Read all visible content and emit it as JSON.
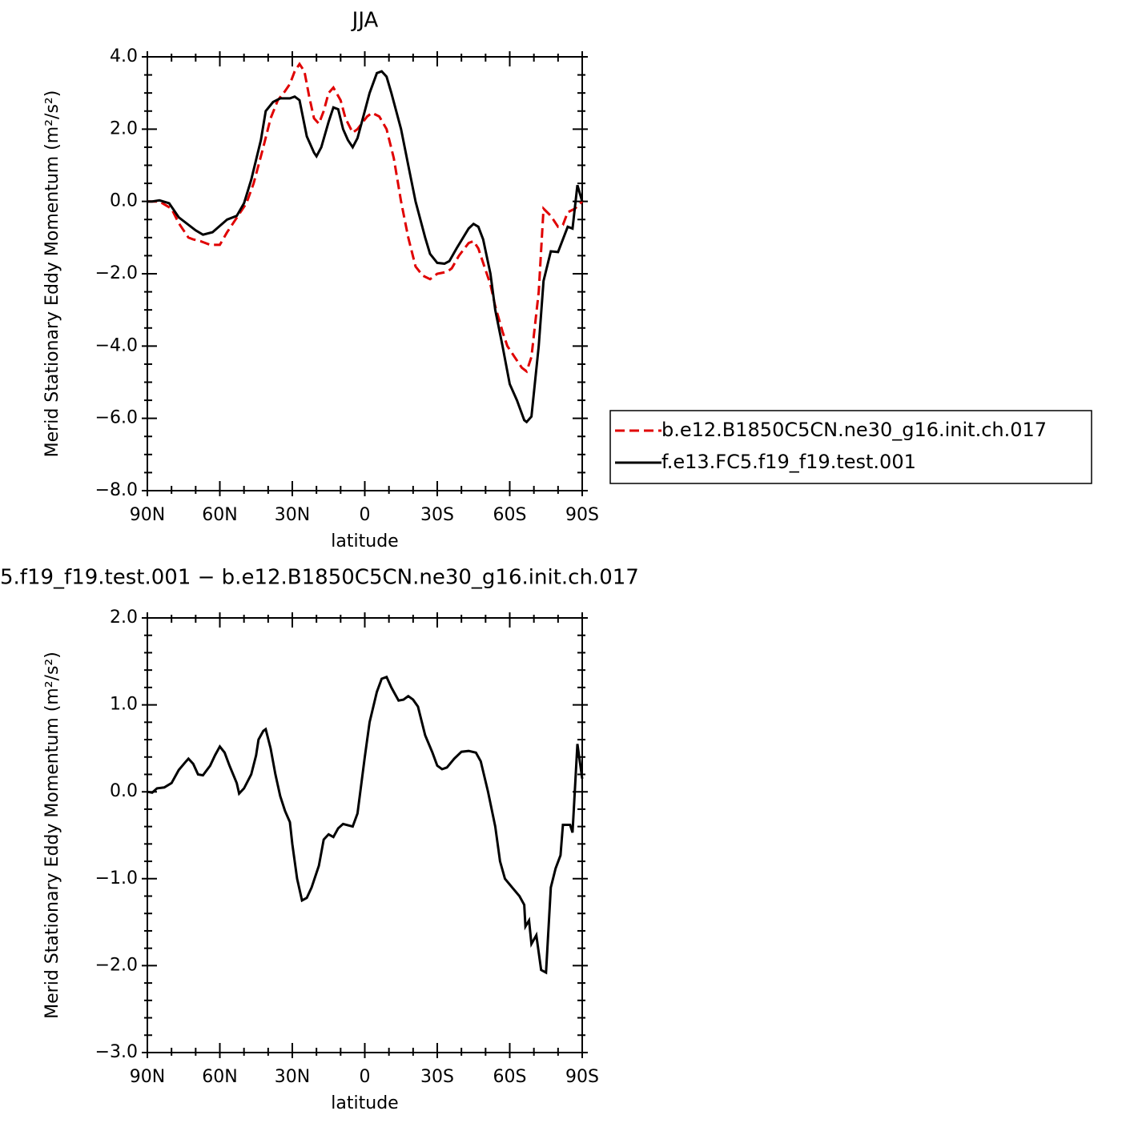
{
  "chart_data": [
    {
      "type": "line",
      "title": "JJA",
      "xlabel": "latitude",
      "ylabel": "Merid Stationary Eddy Momentum (m²/s²)",
      "xlim": [
        90,
        -90
      ],
      "ylim": [
        -8,
        4
      ],
      "xticks": [
        {
          "value": 90,
          "label": "90N"
        },
        {
          "value": 60,
          "label": "60N"
        },
        {
          "value": 30,
          "label": "30N"
        },
        0,
        {
          "value": -30,
          "label": "30S"
        },
        {
          "value": -60,
          "label": "60S"
        },
        {
          "value": -90,
          "label": "90S"
        }
      ],
      "xminorticks": [
        80,
        70,
        50,
        40,
        20,
        10,
        -10,
        -20,
        -40,
        -50,
        -70,
        -80
      ],
      "yticks": [
        {
          "value": 4,
          "label": "4.0"
        },
        {
          "value": 2,
          "label": "2.0"
        },
        {
          "value": 0,
          "label": "0.0"
        },
        {
          "value": -2,
          "label": "−2.0"
        },
        {
          "value": -4,
          "label": "−4.0"
        },
        {
          "value": -6,
          "label": "−6.0"
        },
        {
          "value": -8,
          "label": "−8.0"
        }
      ],
      "yminorticks": [
        3.5,
        3,
        2.5,
        1.5,
        1,
        0.5,
        -0.5,
        -1,
        -1.5,
        -2.5,
        -3,
        -3.5,
        -4.5,
        -5,
        -5.5,
        -6.5,
        -7,
        -7.5
      ],
      "legend": "outside-right",
      "series": [
        {
          "name": "b.e12.B1850C5CN.ne30_g16.init.ch.017",
          "color": "#e00000",
          "dash": true,
          "x": [
            90,
            85,
            80,
            77,
            73,
            71,
            68,
            64,
            60,
            57,
            52,
            49,
            46,
            42,
            39,
            36,
            33,
            31,
            29,
            27,
            25,
            23,
            21,
            19,
            17,
            15,
            13,
            10,
            8,
            5,
            3,
            -1,
            -3,
            -6,
            -9,
            -12,
            -15,
            -18,
            -21,
            -24,
            -27,
            -30,
            -34,
            -36,
            -39,
            -43,
            -45,
            -47,
            -49,
            -52,
            -54,
            -57,
            -59,
            -62,
            -65,
            -67,
            -69,
            -72,
            -74,
            -77,
            -80,
            -82,
            -84,
            -87,
            -90
          ],
          "values": [
            0,
            0,
            -0.2,
            -0.6,
            -1.0,
            -1.05,
            -1.1,
            -1.2,
            -1.2,
            -0.85,
            -0.35,
            -0.05,
            0.5,
            1.5,
            2.3,
            2.8,
            3.05,
            3.25,
            3.6,
            3.8,
            3.6,
            2.9,
            2.3,
            2.15,
            2.5,
            3.0,
            3.15,
            2.8,
            2.3,
            1.9,
            2.0,
            2.35,
            2.45,
            2.35,
            2.0,
            1.2,
            0.0,
            -1.0,
            -1.8,
            -2.05,
            -2.15,
            -2.0,
            -1.95,
            -1.85,
            -1.5,
            -1.15,
            -1.1,
            -1.3,
            -1.7,
            -2.3,
            -2.9,
            -3.6,
            -4.0,
            -4.3,
            -4.6,
            -4.7,
            -4.3,
            -2.5,
            -0.2,
            -0.4,
            -0.7,
            -0.65,
            -0.3,
            -0.2,
            0
          ]
        },
        {
          "name": "f.e13.FC5.f19_f19.test.001",
          "color": "#000000",
          "dash": false,
          "x": [
            90,
            88,
            85,
            81,
            77,
            70,
            67,
            63,
            57,
            53,
            50,
            47,
            43,
            41,
            38,
            35,
            31,
            29,
            27,
            24,
            21,
            20,
            18,
            15,
            13,
            11,
            9,
            7,
            5,
            3,
            0,
            -2,
            -5,
            -7,
            -9,
            -11,
            -15,
            -18,
            -21,
            -25,
            -27,
            -30,
            -33,
            -35,
            -38,
            -43,
            -45,
            -47,
            -49,
            -52,
            -54,
            -57,
            -59,
            -60,
            -63,
            -66,
            -67,
            -69,
            -72,
            -74,
            -77,
            -80,
            -84,
            -86,
            -88,
            -90
          ],
          "values": [
            0,
            0,
            0.03,
            -0.05,
            -0.44,
            -0.8,
            -0.92,
            -0.85,
            -0.5,
            -0.4,
            -0.05,
            0.6,
            1.7,
            2.5,
            2.75,
            2.85,
            2.85,
            2.9,
            2.8,
            1.8,
            1.35,
            1.25,
            1.5,
            2.2,
            2.6,
            2.55,
            2.0,
            1.7,
            1.5,
            1.75,
            2.5,
            3.0,
            3.55,
            3.6,
            3.45,
            3.0,
            2.0,
            1.0,
            0,
            -1.0,
            -1.45,
            -1.7,
            -1.72,
            -1.65,
            -1.3,
            -0.75,
            -0.62,
            -0.7,
            -1.05,
            -2.0,
            -3.0,
            -4.0,
            -4.7,
            -5.05,
            -5.5,
            -6.05,
            -6.1,
            -5.95,
            -4.0,
            -2.2,
            -1.38,
            -1.4,
            -0.7,
            -0.75,
            0.45,
            0
          ]
        }
      ]
    },
    {
      "type": "line",
      "title": "5.f19_f19.test.001 − b.e12.B1850C5CN.ne30_g16.init.ch.017",
      "xlabel": "latitude",
      "ylabel": "Merid Stationary Eddy Momentum (m²/s²)",
      "xlim": [
        90,
        -90
      ],
      "ylim": [
        -3,
        2
      ],
      "xticks": [
        {
          "value": 90,
          "label": "90N"
        },
        {
          "value": 60,
          "label": "60N"
        },
        {
          "value": 30,
          "label": "30N"
        },
        0,
        {
          "value": -30,
          "label": "30S"
        },
        {
          "value": -60,
          "label": "60S"
        },
        {
          "value": -90,
          "label": "90S"
        }
      ],
      "xminorticks": [
        80,
        70,
        50,
        40,
        20,
        10,
        -10,
        -20,
        -40,
        -50,
        -70,
        -80
      ],
      "yticks": [
        {
          "value": 2,
          "label": "2.0"
        },
        {
          "value": 1,
          "label": "1.0"
        },
        {
          "value": 0,
          "label": "0.0"
        },
        {
          "value": -1,
          "label": "−1.0"
        },
        {
          "value": -2,
          "label": "−2.0"
        },
        {
          "value": -3,
          "label": "−3.0"
        }
      ],
      "yminorticks": [
        1.8,
        1.6,
        1.4,
        1.2,
        0.8,
        0.6,
        0.4,
        0.2,
        -0.2,
        -0.4,
        -0.6,
        -0.8,
        -1.2,
        -1.4,
        -1.6,
        -1.8,
        -2.2,
        -2.4,
        -2.6,
        -2.8
      ],
      "series": [
        {
          "color": "#000000",
          "dash": false,
          "x": [
            90,
            88,
            86,
            83,
            80,
            77,
            74,
            73,
            71,
            69,
            67,
            64,
            62,
            60,
            58,
            56,
            53,
            52,
            50,
            47,
            45,
            44,
            42,
            41,
            39,
            37,
            35,
            33,
            31,
            30,
            28,
            26,
            24,
            22,
            19,
            17,
            15,
            13,
            11,
            9,
            5,
            3,
            0,
            -2,
            -5,
            -7,
            -9,
            -11,
            -14,
            -16,
            -18,
            -20,
            -22,
            -25,
            -28,
            -30,
            -32,
            -34,
            -37,
            -40,
            -43,
            -46,
            -48,
            -51,
            -54,
            -56,
            -58,
            -61,
            -64,
            -66,
            -66.5,
            -68,
            -69,
            -71,
            -73,
            -75,
            -77,
            -79,
            -81,
            -82,
            -85,
            -86,
            -88,
            -90
          ],
          "values": [
            0,
            -0.01,
            0.04,
            0.05,
            0.1,
            0.25,
            0.35,
            0.38,
            0.32,
            0.2,
            0.19,
            0.3,
            0.42,
            0.52,
            0.45,
            0.3,
            0.1,
            -0.02,
            0.04,
            0.2,
            0.42,
            0.6,
            0.7,
            0.72,
            0.5,
            0.2,
            -0.05,
            -0.22,
            -0.35,
            -0.6,
            -1.0,
            -1.25,
            -1.22,
            -1.1,
            -0.85,
            -0.55,
            -0.49,
            -0.52,
            -0.42,
            -0.37,
            -0.4,
            -0.25,
            0.4,
            0.8,
            1.15,
            1.3,
            1.32,
            1.2,
            1.05,
            1.06,
            1.1,
            1.06,
            0.98,
            0.65,
            0.45,
            0.3,
            0.26,
            0.28,
            0.38,
            0.46,
            0.47,
            0.45,
            0.35,
            0.0,
            -0.4,
            -0.8,
            -1.0,
            -1.1,
            -1.2,
            -1.3,
            -1.55,
            -1.48,
            -1.75,
            -1.65,
            -2.05,
            -2.08,
            -1.1,
            -0.88,
            -0.73,
            -0.38,
            -0.38,
            -0.47,
            0.55,
            0.15
          ]
        }
      ]
    }
  ]
}
